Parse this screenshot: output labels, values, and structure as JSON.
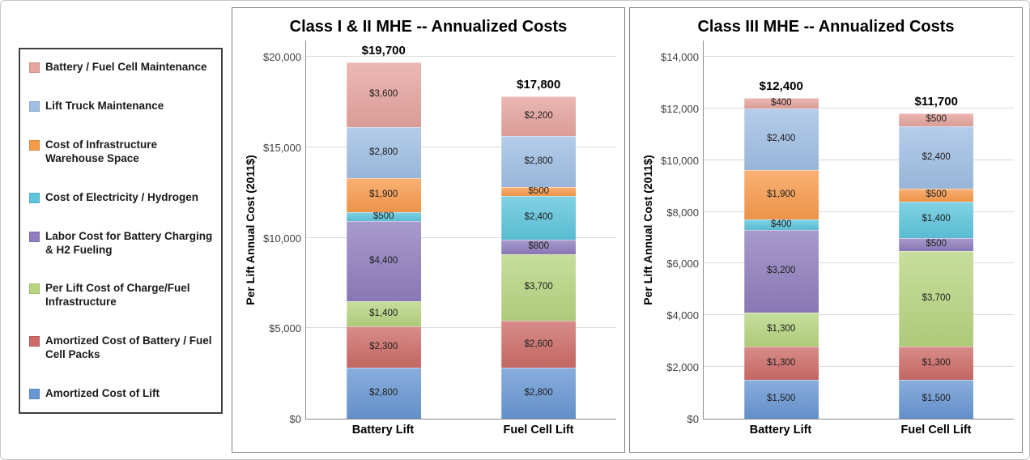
{
  "legend": {
    "items": [
      {
        "label": "Battery / Fuel Cell Maintenance",
        "color": "#E6A49E"
      },
      {
        "label": "Lift Truck Maintenance",
        "color": "#A0BFE4"
      },
      {
        "label": "Cost of Infrastructure Warehouse Space",
        "color": "#F89B4D"
      },
      {
        "label": "Cost of Electricity / Hydrogen",
        "color": "#5EC5DC"
      },
      {
        "label": "Labor Cost for Battery Charging & H2 Fueling",
        "color": "#8F7EBE"
      },
      {
        "label": "Per Lift Cost of Charge/Fuel Infrastructure",
        "color": "#B7D581"
      },
      {
        "label": "Amortized Cost of Battery / Fuel Cell Packs",
        "color": "#CD6C68"
      },
      {
        "label": "Amortized Cost of Lift",
        "color": "#6897D3"
      }
    ]
  },
  "chart_data": [
    {
      "type": "bar",
      "stacked": true,
      "title": "Class I & II MHE -- Annualized Costs",
      "xlabel": "",
      "ylabel": "Per Lift Annual Cost (2011$)",
      "ylim": [
        0,
        20000
      ],
      "ytick_step": 5000,
      "ytick_labels": [
        "$0",
        "$5,000",
        "$10,000",
        "$15,000",
        "$20,000"
      ],
      "grid": true,
      "legend_position": "left-shared",
      "categories": [
        "Battery Lift",
        "Fuel Cell Lift"
      ],
      "totals": [
        "$19,700",
        "$17,800"
      ],
      "series": [
        {
          "name": "Amortized Cost of Lift",
          "color": "#6897D3",
          "values": [
            2800,
            2800
          ]
        },
        {
          "name": "Amortized Cost of Battery / Fuel Cell Packs",
          "color": "#CD6C68",
          "values": [
            2300,
            2600
          ]
        },
        {
          "name": "Per Lift Cost of Charge/Fuel Infrastructure",
          "color": "#B7D581",
          "values": [
            1400,
            3700
          ]
        },
        {
          "name": "Labor Cost for Battery Charging & H2 Fueling",
          "color": "#8F7EBE",
          "values": [
            4400,
            800
          ]
        },
        {
          "name": "Cost of Electricity / Hydrogen",
          "color": "#5EC5DC",
          "values": [
            500,
            2400
          ]
        },
        {
          "name": "Cost of Infrastructure Warehouse Space",
          "color": "#F89B4D",
          "values": [
            1900,
            500
          ]
        },
        {
          "name": "Lift Truck Maintenance",
          "color": "#A0BFE4",
          "values": [
            2800,
            2800
          ]
        },
        {
          "name": "Battery / Fuel Cell Maintenance",
          "color": "#E6A49E",
          "values": [
            3600,
            2200
          ]
        }
      ]
    },
    {
      "type": "bar",
      "stacked": true,
      "title": "Class III MHE -- Annualized Costs",
      "xlabel": "",
      "ylabel": "Per Lift Annual Cost (2011$)",
      "ylim": [
        0,
        14000
      ],
      "ytick_step": 2000,
      "ytick_labels": [
        "$0",
        "$2,000",
        "$4,000",
        "$6,000",
        "$8,000",
        "$10,000",
        "$12,000",
        "$14,000"
      ],
      "grid": true,
      "legend_position": "left-shared",
      "categories": [
        "Battery Lift",
        "Fuel Cell Lift"
      ],
      "totals": [
        "$12,400",
        "$11,700"
      ],
      "series": [
        {
          "name": "Amortized Cost of Lift",
          "color": "#6897D3",
          "values": [
            1500,
            1500
          ]
        },
        {
          "name": "Amortized Cost of Battery / Fuel Cell Packs",
          "color": "#CD6C68",
          "values": [
            1300,
            1300
          ]
        },
        {
          "name": "Per Lift Cost of Charge/Fuel Infrastructure",
          "color": "#B7D581",
          "values": [
            1300,
            3700
          ]
        },
        {
          "name": "Labor Cost for Battery Charging & H2 Fueling",
          "color": "#8F7EBE",
          "values": [
            3200,
            500
          ]
        },
        {
          "name": "Cost of Electricity / Hydrogen",
          "color": "#5EC5DC",
          "values": [
            400,
            1400
          ]
        },
        {
          "name": "Cost of Infrastructure Warehouse Space",
          "color": "#F89B4D",
          "values": [
            1900,
            500
          ]
        },
        {
          "name": "Lift Truck Maintenance",
          "color": "#A0BFE4",
          "values": [
            2400,
            2400
          ]
        },
        {
          "name": "Battery / Fuel Cell Maintenance",
          "color": "#E6A49E",
          "values": [
            400,
            500
          ]
        }
      ]
    }
  ]
}
